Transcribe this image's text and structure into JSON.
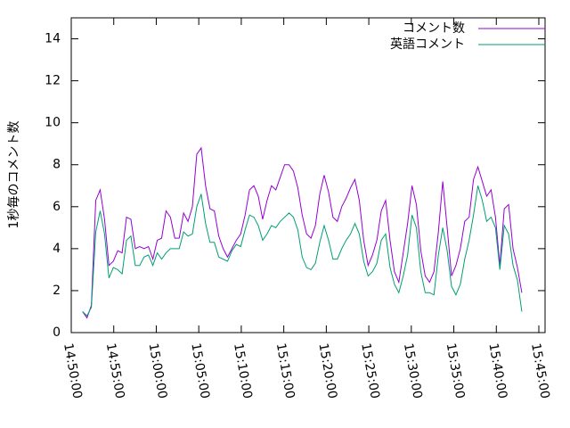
{
  "chart_data": {
    "type": "line",
    "ylabel": "1秒毎のコメント数",
    "legend": "top-right",
    "x": [
      "14:51:20",
      "14:51:51",
      "14:52:22",
      "14:52:53",
      "14:53:24",
      "14:53:55",
      "14:54:26",
      "14:54:57",
      "14:55:28",
      "14:55:59",
      "14:56:30",
      "14:57:01",
      "14:57:32",
      "14:58:03",
      "14:58:34",
      "14:59:05",
      "14:59:36",
      "15:00:07",
      "15:00:38",
      "15:01:09",
      "15:01:40",
      "15:02:11",
      "15:02:42",
      "15:03:13",
      "15:03:44",
      "15:04:15",
      "15:04:46",
      "15:05:17",
      "15:05:48",
      "15:06:19",
      "15:06:50",
      "15:07:21",
      "15:07:52",
      "15:08:23",
      "15:08:54",
      "15:09:25",
      "15:09:56",
      "15:10:27",
      "15:10:58",
      "15:11:29",
      "15:12:00",
      "15:12:31",
      "15:13:02",
      "15:13:33",
      "15:14:04",
      "15:14:35",
      "15:15:06",
      "15:15:37",
      "15:16:08",
      "15:16:39",
      "15:17:10",
      "15:17:41",
      "15:18:12",
      "15:18:43",
      "15:19:14",
      "15:19:45",
      "15:20:16",
      "15:20:47",
      "15:21:18",
      "15:21:49",
      "15:22:20",
      "15:22:51",
      "15:23:22",
      "15:23:53",
      "15:24:24",
      "15:24:55",
      "15:25:26",
      "15:25:57",
      "15:26:28",
      "15:26:59",
      "15:27:30",
      "15:28:01",
      "15:28:32",
      "15:29:03",
      "15:29:34",
      "15:30:05",
      "15:30:36",
      "15:31:07",
      "15:31:38",
      "15:32:09",
      "15:32:40",
      "15:33:11",
      "15:33:42",
      "15:34:13",
      "15:34:44",
      "15:35:15",
      "15:35:46",
      "15:36:17",
      "15:36:48",
      "15:37:19",
      "15:37:50",
      "15:38:21",
      "15:38:52",
      "15:39:23",
      "15:39:54",
      "15:40:25",
      "15:40:56",
      "15:41:27",
      "15:41:58",
      "15:42:29",
      "15:43:00"
    ],
    "series": [
      {
        "name": "コメント数",
        "color": "#9400d3",
        "values": [
          1.0,
          0.7,
          1.3,
          6.3,
          6.8,
          5.4,
          3.2,
          3.4,
          3.9,
          3.8,
          5.5,
          5.4,
          4.0,
          4.1,
          4.0,
          4.1,
          3.5,
          4.4,
          4.5,
          5.8,
          5.5,
          4.5,
          4.5,
          5.7,
          5.3,
          6.0,
          8.5,
          8.8,
          7.0,
          5.9,
          5.8,
          4.6,
          4.0,
          3.6,
          4.0,
          4.4,
          4.7,
          5.6,
          6.8,
          7.0,
          6.5,
          5.4,
          6.3,
          7.0,
          6.8,
          7.4,
          8.0,
          8.0,
          7.7,
          6.9,
          5.6,
          4.7,
          4.5,
          5.1,
          6.6,
          7.5,
          6.7,
          5.5,
          5.3,
          6.0,
          6.4,
          6.9,
          7.3,
          6.3,
          4.4,
          3.2,
          3.7,
          4.4,
          5.8,
          6.3,
          4.4,
          2.9,
          2.4,
          3.8,
          5.2,
          7.0,
          6.1,
          3.9,
          2.7,
          2.4,
          2.9,
          4.8,
          7.2,
          5.0,
          2.7,
          3.2,
          4.0,
          5.3,
          5.5,
          7.3,
          7.9,
          7.2,
          6.5,
          6.8,
          5.5,
          3.2,
          5.9,
          6.1,
          4.0,
          3.1,
          1.9
        ]
      },
      {
        "name": "英語コメント",
        "color": "#009e73",
        "values": [
          1.0,
          0.8,
          1.2,
          4.8,
          5.8,
          4.7,
          2.6,
          3.1,
          3.0,
          2.8,
          4.4,
          4.6,
          3.2,
          3.2,
          3.6,
          3.7,
          3.2,
          3.8,
          3.5,
          3.8,
          4.0,
          4.0,
          4.0,
          4.8,
          4.6,
          4.7,
          6.0,
          6.6,
          5.2,
          4.3,
          4.3,
          3.6,
          3.5,
          3.4,
          3.9,
          4.2,
          4.1,
          4.9,
          5.6,
          5.5,
          5.1,
          4.4,
          4.7,
          5.1,
          5.0,
          5.3,
          5.5,
          5.7,
          5.5,
          4.9,
          3.6,
          3.1,
          3.0,
          3.3,
          4.3,
          5.1,
          4.4,
          3.5,
          3.5,
          4.0,
          4.4,
          4.7,
          5.2,
          4.7,
          3.4,
          2.7,
          2.9,
          3.3,
          4.4,
          4.7,
          3.1,
          2.3,
          1.9,
          2.7,
          3.7,
          5.6,
          5.0,
          2.9,
          1.9,
          1.9,
          1.8,
          3.7,
          5.0,
          3.9,
          2.2,
          1.8,
          2.3,
          3.5,
          4.4,
          5.6,
          7.0,
          6.3,
          5.3,
          5.5,
          5.0,
          3.0,
          5.1,
          4.7,
          3.2,
          2.5,
          1.0
        ]
      }
    ],
    "xlim": [
      "14:50:00",
      "15:45:44"
    ],
    "xticks": [
      "14:50:00",
      "14:55:00",
      "15:00:00",
      "15:05:00",
      "15:10:00",
      "15:15:00",
      "15:20:00",
      "15:25:00",
      "15:30:00",
      "15:35:00",
      "15:40:00",
      "15:45:00"
    ],
    "ylim": [
      0,
      15
    ],
    "yticks": [
      0,
      2,
      4,
      6,
      8,
      10,
      12,
      14
    ]
  }
}
